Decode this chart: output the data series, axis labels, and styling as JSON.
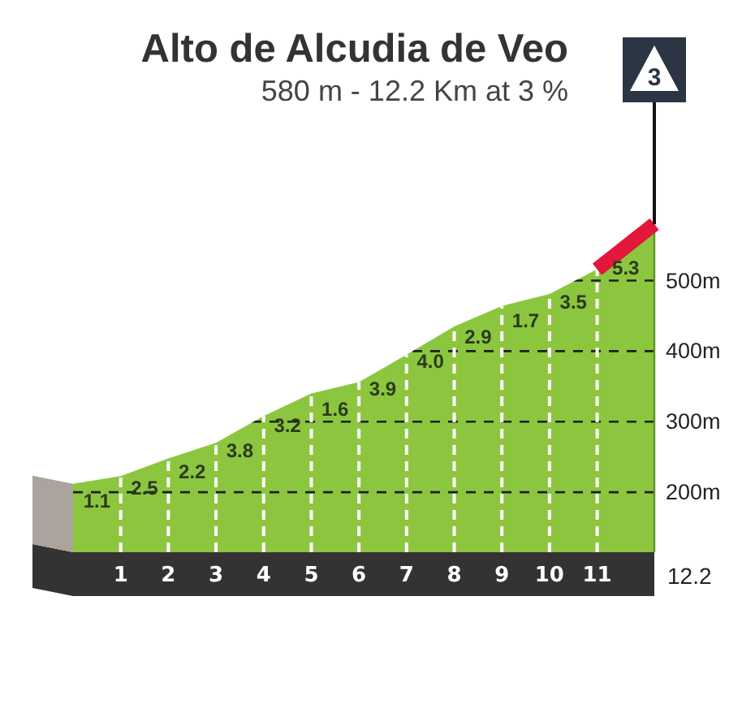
{
  "chart_data": {
    "type": "area",
    "title": "Alto de Alcudia de Veo",
    "subtitle": "580 m - 12.2 Km at 3 %",
    "x": [
      0,
      1,
      2,
      3,
      4,
      5,
      6,
      7,
      8,
      9,
      10,
      11,
      12.2
    ],
    "series": [
      {
        "color": "#8cc63f",
        "values": [
          212,
          223,
          248,
          270,
          308,
          340,
          356,
          395,
          435,
          464,
          481,
          516,
          580
        ]
      },
      {
        "type": "line",
        "color": "#e2173b",
        "x": [
          11,
          12.2
        ],
        "values": [
          516,
          580
        ]
      }
    ],
    "xlim": [
      0,
      12.2
    ],
    "xticks": [
      1,
      2,
      3,
      4,
      5,
      6,
      7,
      8,
      9,
      10,
      11
    ],
    "ylim": [
      115,
      580
    ],
    "yticks": [
      {
        "value": 200,
        "label": "200m"
      },
      {
        "value": 300,
        "label": "300m"
      },
      {
        "value": 400,
        "label": "400m"
      },
      {
        "value": 500,
        "label": "500m"
      }
    ],
    "grid": true,
    "annotations": [
      {
        "text": "3",
        "x": 12.2,
        "y": 580
      },
      "12.2",
      {
        "text": "1.1",
        "x": 0.5,
        "y": 218
      },
      {
        "text": "2.5",
        "x": 1.5,
        "y": 236
      },
      {
        "text": "2.2",
        "x": 2.5,
        "y": 259
      },
      {
        "text": "3.8",
        "x": 3.5,
        "y": 289
      },
      {
        "text": "3.2",
        "x": 4.5,
        "y": 324
      },
      {
        "text": "1.6",
        "x": 5.5,
        "y": 348
      },
      {
        "text": "3.9",
        "x": 6.5,
        "y": 376
      },
      {
        "text": "4.0",
        "x": 7.5,
        "y": 415
      },
      {
        "text": "2.9",
        "x": 8.5,
        "y": 450
      },
      {
        "text": "1.7",
        "x": 9.5,
        "y": 473
      },
      {
        "text": "3.5",
        "x": 10.5,
        "y": 499
      },
      {
        "text": "5.3",
        "x": 11.6,
        "y": 548
      }
    ]
  }
}
